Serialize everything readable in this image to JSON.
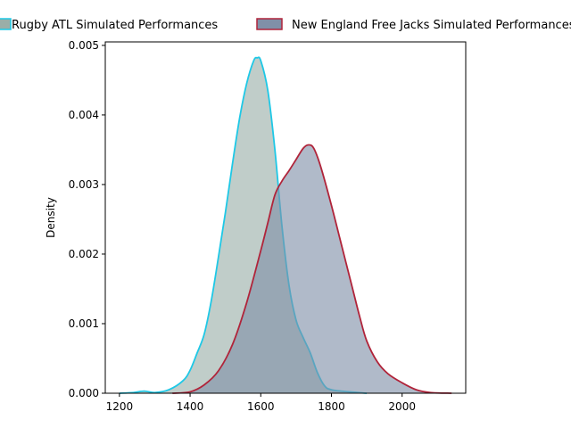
{
  "chart_data": {
    "type": "area",
    "title": "",
    "xlabel": "",
    "ylabel": "Density",
    "xlim": [
      1160,
      2180
    ],
    "ylim": [
      0,
      0.00505
    ],
    "x_ticks": [
      1200,
      1400,
      1600,
      1800,
      2000
    ],
    "y_ticks": [
      0.0,
      0.001,
      0.002,
      0.003,
      0.004,
      0.005
    ],
    "y_tick_labels": [
      "0.000",
      "0.001",
      "0.002",
      "0.003",
      "0.004",
      "0.005"
    ],
    "legend_position": "top",
    "grid": false,
    "series": [
      {
        "name": "Rugby ATL Simulated Performances",
        "line_color": "#1ec8e6",
        "fill_color": "#9aaea8",
        "points": [
          [
            1200,
            0.0
          ],
          [
            1240,
            1e-05
          ],
          [
            1270,
            3e-05
          ],
          [
            1300,
            1e-05
          ],
          [
            1340,
            5e-05
          ],
          [
            1380,
            0.00018
          ],
          [
            1400,
            0.00033
          ],
          [
            1420,
            0.00058
          ],
          [
            1440,
            0.00085
          ],
          [
            1460,
            0.00133
          ],
          [
            1480,
            0.00195
          ],
          [
            1500,
            0.0026
          ],
          [
            1520,
            0.0033
          ],
          [
            1540,
            0.00395
          ],
          [
            1560,
            0.00445
          ],
          [
            1580,
            0.00478
          ],
          [
            1590,
            0.00482
          ],
          [
            1600,
            0.00478
          ],
          [
            1620,
            0.00435
          ],
          [
            1640,
            0.0035
          ],
          [
            1660,
            0.0024
          ],
          [
            1680,
            0.00155
          ],
          [
            1700,
            0.00105
          ],
          [
            1720,
            0.0008
          ],
          [
            1740,
            0.00058
          ],
          [
            1760,
            0.0003
          ],
          [
            1780,
            0.00011
          ],
          [
            1800,
            5e-05
          ],
          [
            1850,
            2e-05
          ],
          [
            1900,
            0.0
          ]
        ]
      },
      {
        "name": "New England Free Jacks Simulated Performances",
        "line_color": "#b0243a",
        "fill_color": "#8090a8",
        "points": [
          [
            1350,
            0.0
          ],
          [
            1400,
            2e-05
          ],
          [
            1440,
            0.00012
          ],
          [
            1480,
            0.00032
          ],
          [
            1520,
            0.0007
          ],
          [
            1560,
            0.0013
          ],
          [
            1600,
            0.00205
          ],
          [
            1620,
            0.00245
          ],
          [
            1640,
            0.00285
          ],
          [
            1660,
            0.00305
          ],
          [
            1680,
            0.0032
          ],
          [
            1700,
            0.00336
          ],
          [
            1720,
            0.00352
          ],
          [
            1735,
            0.00357
          ],
          [
            1750,
            0.00352
          ],
          [
            1770,
            0.00325
          ],
          [
            1800,
            0.0027
          ],
          [
            1830,
            0.0021
          ],
          [
            1860,
            0.0015
          ],
          [
            1880,
            0.0011
          ],
          [
            1900,
            0.00075
          ],
          [
            1930,
            0.00045
          ],
          [
            1960,
            0.00028
          ],
          [
            2000,
            0.00015
          ],
          [
            2040,
            5e-05
          ],
          [
            2080,
            1e-05
          ],
          [
            2140,
            0.0
          ]
        ]
      }
    ]
  }
}
